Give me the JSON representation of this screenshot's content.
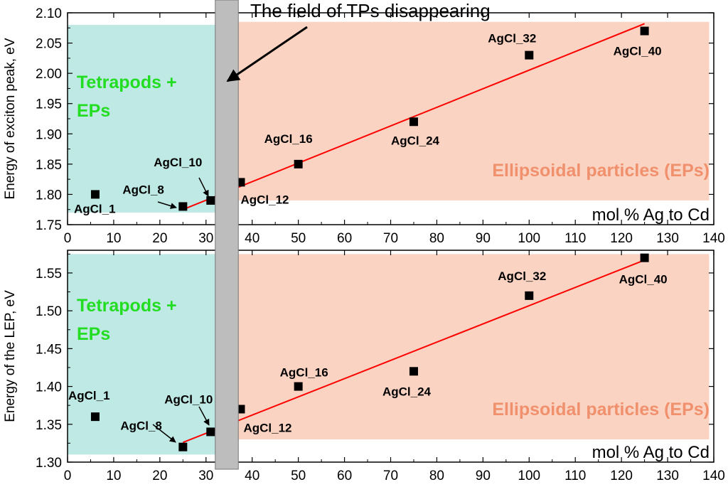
{
  "title_annotation": "The field of TPs disappearing",
  "colors": {
    "tp_region": "#bfe9e4",
    "ep_region": "#fbd3c2",
    "band": "#bdbdbd",
    "fit_line": "#ff0000",
    "tp_label": "#22dd22",
    "ep_label": "#f0906c",
    "marker": "#000000"
  },
  "chart_data": [
    {
      "type": "scatter",
      "id": "top",
      "xlabel": "mol % Ag to Cd",
      "ylabel": "Energy of exciton peak, eV",
      "xlim": [
        0,
        140
      ],
      "ylim": [
        1.75,
        2.1
      ],
      "xticks": [
        0,
        10,
        20,
        30,
        40,
        50,
        60,
        70,
        80,
        90,
        100,
        110,
        120,
        130,
        140
      ],
      "xtick_labels": [
        "0",
        "10",
        "20",
        "30",
        "40",
        "50",
        "60",
        "70",
        "80",
        "90",
        "100",
        "110",
        "120",
        "130",
        "140"
      ],
      "yticks": [
        1.75,
        1.8,
        1.85,
        1.9,
        1.95,
        2.0,
        2.05,
        2.1
      ],
      "ytick_labels": [
        "1.75",
        "1.80",
        "1.85",
        "1.90",
        "1.95",
        "2.00",
        "2.05",
        "2.10"
      ],
      "regions": {
        "tetrapods": {
          "label_line1": "Tetrapods +",
          "label_line2": "EPs",
          "x": [
            0,
            32
          ],
          "y": [
            1.77,
            2.08
          ]
        },
        "band": {
          "x": [
            32,
            37
          ]
        },
        "ellipsoidal": {
          "label": "Ellipsoidal particles (EPs)",
          "x": [
            37,
            139
          ],
          "y": [
            1.79,
            2.085
          ]
        }
      },
      "points": [
        {
          "label": "AgCl_1",
          "x": 6,
          "y": 1.8
        },
        {
          "label": "AgCl_8",
          "x": 25,
          "y": 1.78
        },
        {
          "label": "AgCl_10",
          "x": 31,
          "y": 1.79
        },
        {
          "label": "AgCl_12",
          "x": 37.5,
          "y": 1.82
        },
        {
          "label": "AgCl_16",
          "x": 50,
          "y": 1.85
        },
        {
          "label": "AgCl_24",
          "x": 75,
          "y": 1.92
        },
        {
          "label": "AgCl_32",
          "x": 100,
          "y": 2.03
        },
        {
          "label": "AgCl_40",
          "x": 125,
          "y": 2.07
        }
      ],
      "fit": {
        "x": [
          25,
          125
        ],
        "y": [
          1.775,
          2.082
        ]
      }
    },
    {
      "type": "scatter",
      "id": "bottom",
      "xlabel": "mol % Ag to Cd",
      "ylabel": "Energy of the LEP, eV",
      "xlim": [
        0,
        140
      ],
      "ylim": [
        1.3,
        1.58
      ],
      "xticks": [
        0,
        10,
        20,
        30,
        40,
        50,
        60,
        70,
        80,
        90,
        100,
        110,
        120,
        130,
        140
      ],
      "xtick_labels": [
        "0",
        "10",
        "20",
        "30",
        "40",
        "50",
        "60",
        "70",
        "80",
        "90",
        "100",
        "110",
        "120",
        "130",
        "140"
      ],
      "yticks": [
        1.3,
        1.35,
        1.4,
        1.45,
        1.5,
        1.55
      ],
      "ytick_labels": [
        "1.30",
        "1.35",
        "1.40",
        "1.45",
        "1.50",
        "1.55"
      ],
      "regions": {
        "tetrapods": {
          "label_line1": "Tetrapods +",
          "label_line2": "EPs",
          "x": [
            0,
            32
          ],
          "y": [
            1.31,
            1.575
          ]
        },
        "band": {
          "x": [
            32,
            37
          ]
        },
        "ellipsoidal": {
          "label": "Ellipsoidal particles (EPs)",
          "x": [
            37,
            139
          ],
          "y": [
            1.33,
            1.575
          ]
        }
      },
      "points": [
        {
          "label": "AgCl_1",
          "x": 6,
          "y": 1.36
        },
        {
          "label": "AgCl_8",
          "x": 25,
          "y": 1.32
        },
        {
          "label": "AgCl_10",
          "x": 31,
          "y": 1.34
        },
        {
          "label": "AgCl_12",
          "x": 37.5,
          "y": 1.37
        },
        {
          "label": "AgCl_16",
          "x": 50,
          "y": 1.4
        },
        {
          "label": "AgCl_24",
          "x": 75,
          "y": 1.42
        },
        {
          "label": "AgCl_32",
          "x": 100,
          "y": 1.52
        },
        {
          "label": "AgCl_40",
          "x": 125,
          "y": 1.57
        }
      ],
      "fit": {
        "x": [
          25,
          125
        ],
        "y": [
          1.326,
          1.567
        ]
      }
    }
  ]
}
